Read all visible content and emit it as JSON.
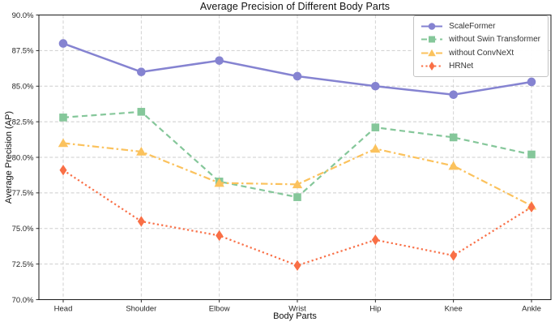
{
  "chart_data": {
    "type": "line",
    "title": "Average Precision of Different Body Parts",
    "xlabel": "Body Parts",
    "ylabel": "Average Precision (AP)",
    "categories": [
      "Head",
      "Shoulder",
      "Elbow",
      "Wrist",
      "Hip",
      "Knee",
      "Ankle"
    ],
    "ylim": [
      70.0,
      90.0
    ],
    "yticks": [
      70.0,
      72.5,
      75.0,
      77.5,
      80.0,
      82.5,
      85.0,
      87.5,
      90.0
    ],
    "ytick_labels": [
      "70.0%",
      "72.5%",
      "75.0%",
      "77.5%",
      "80.0%",
      "82.5%",
      "85.0%",
      "87.5%",
      "90.0%"
    ],
    "grid": true,
    "legend_position": "upper right",
    "series": [
      {
        "name": "ScaleFormer",
        "color": "#8583d1",
        "linestyle": "solid",
        "marker": "circle",
        "values": [
          88.0,
          86.0,
          86.8,
          85.7,
          85.0,
          84.4,
          85.3
        ]
      },
      {
        "name": "without Swin Transformer",
        "color": "#85c79a",
        "linestyle": "dashed",
        "marker": "square",
        "values": [
          82.8,
          83.2,
          78.3,
          77.2,
          82.1,
          81.4,
          80.2
        ]
      },
      {
        "name": "without ConvNeXt",
        "color": "#fbc25d",
        "linestyle": "dashdot",
        "marker": "triangle",
        "values": [
          81.0,
          80.4,
          78.2,
          78.1,
          80.6,
          79.4,
          76.6
        ]
      },
      {
        "name": "HRNet",
        "color": "#f96f46",
        "linestyle": "dotted",
        "marker": "diamond",
        "values": [
          79.1,
          75.5,
          74.5,
          72.4,
          74.2,
          73.1,
          76.5
        ]
      }
    ]
  }
}
